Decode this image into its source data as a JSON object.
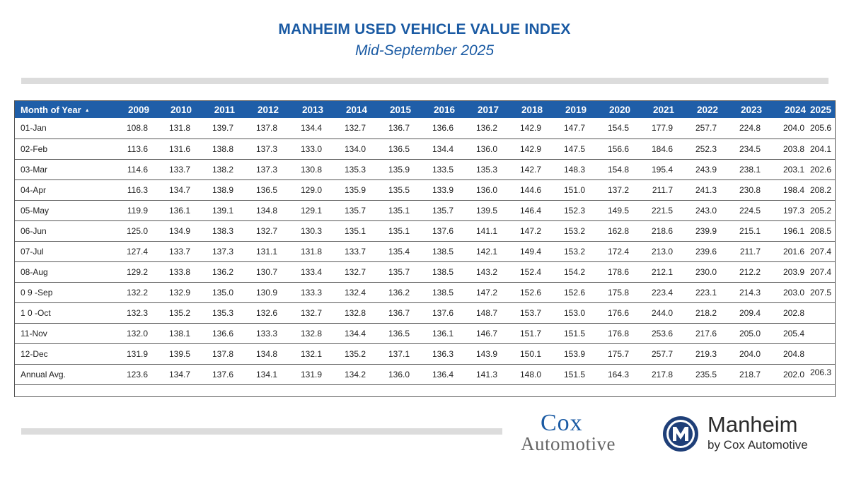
{
  "header": {
    "title": "MANHEIM USED VEHICLE VALUE INDEX",
    "subtitle": "Mid-September 2025"
  },
  "logos": {
    "cox_line1": "Cox",
    "cox_line2": "Automotive",
    "manheim_name": "Manheim",
    "manheim_sub": "by Cox Automotive"
  },
  "colors": {
    "title": "#1a5aa3",
    "header_bg": "#1f5ea8",
    "rule_bar": "#dcdcdc"
  },
  "chart_data": {
    "type": "table",
    "title": "MANHEIM USED VEHICLE VALUE INDEX",
    "subtitle": "Mid-September 2025",
    "first_column_header": "Month of Year",
    "sort_indicator": "▲",
    "columns": [
      "2009",
      "2010",
      "2011",
      "2012",
      "2013",
      "2014",
      "2015",
      "2016",
      "2017",
      "2018",
      "2019",
      "2020",
      "2021",
      "2022",
      "2023",
      "2024",
      "2025"
    ],
    "rows": [
      {
        "label": "01-Jan",
        "values": [
          "108.8",
          "131.8",
          "139.7",
          "137.8",
          "134.4",
          "132.7",
          "136.7",
          "136.6",
          "136.2",
          "142.9",
          "147.7",
          "154.5",
          "177.9",
          "257.7",
          "224.8",
          "204.0",
          "205.6"
        ]
      },
      {
        "label": "02-Feb",
        "values": [
          "113.6",
          "131.6",
          "138.8",
          "137.3",
          "133.0",
          "134.0",
          "136.5",
          "134.4",
          "136.0",
          "142.9",
          "147.5",
          "156.6",
          "184.6",
          "252.3",
          "234.5",
          "203.8",
          "204.1"
        ]
      },
      {
        "label": "03-Mar",
        "values": [
          "114.6",
          "133.7",
          "138.2",
          "137.3",
          "130.8",
          "135.3",
          "135.9",
          "133.5",
          "135.3",
          "142.7",
          "148.3",
          "154.8",
          "195.4",
          "243.9",
          "238.1",
          "203.1",
          "202.6"
        ]
      },
      {
        "label": "04-Apr",
        "values": [
          "116.3",
          "134.7",
          "138.9",
          "136.5",
          "129.0",
          "135.9",
          "135.5",
          "133.9",
          "136.0",
          "144.6",
          "151.0",
          "137.2",
          "211.7",
          "241.3",
          "230.8",
          "198.4",
          "208.2"
        ]
      },
      {
        "label": "05-May",
        "values": [
          "119.9",
          "136.1",
          "139.1",
          "134.8",
          "129.1",
          "135.7",
          "135.1",
          "135.7",
          "139.5",
          "146.4",
          "152.3",
          "149.5",
          "221.5",
          "243.0",
          "224.5",
          "197.3",
          "205.2"
        ]
      },
      {
        "label": "06-Jun",
        "values": [
          "125.0",
          "134.9",
          "138.3",
          "132.7",
          "130.3",
          "135.1",
          "135.1",
          "137.6",
          "141.1",
          "147.2",
          "153.2",
          "162.8",
          "218.6",
          "239.9",
          "215.1",
          "196.1",
          "208.5"
        ]
      },
      {
        "label": "07-Jul",
        "values": [
          "127.4",
          "133.7",
          "137.3",
          "131.1",
          "131.8",
          "133.7",
          "135.4",
          "138.5",
          "142.1",
          "149.4",
          "153.2",
          "172.4",
          "213.0",
          "239.6",
          "211.7",
          "201.6",
          "207.4"
        ]
      },
      {
        "label": "08-Aug",
        "values": [
          "129.2",
          "133.8",
          "136.2",
          "130.7",
          "133.4",
          "132.7",
          "135.7",
          "138.5",
          "143.2",
          "152.4",
          "154.2",
          "178.6",
          "212.1",
          "230.0",
          "212.2",
          "203.9",
          "207.4"
        ]
      },
      {
        "label": "0 9 -Sep",
        "values": [
          "132.2",
          "132.9",
          "135.0",
          "130.9",
          "133.3",
          "132.4",
          "136.2",
          "138.5",
          "147.2",
          "152.6",
          "152.6",
          "175.8",
          "223.4",
          "223.1",
          "214.3",
          "203.0",
          "207.5"
        ]
      },
      {
        "label": "1 0 -Oct",
        "values": [
          "132.3",
          "135.2",
          "135.3",
          "132.6",
          "132.7",
          "132.8",
          "136.7",
          "137.6",
          "148.7",
          "153.7",
          "153.0",
          "176.6",
          "244.0",
          "218.2",
          "209.4",
          "202.8",
          ""
        ]
      },
      {
        "label": "11-Nov",
        "values": [
          "132.0",
          "138.1",
          "136.6",
          "133.3",
          "132.8",
          "134.4",
          "136.5",
          "136.1",
          "146.7",
          "151.7",
          "151.5",
          "176.8",
          "253.6",
          "217.6",
          "205.0",
          "205.4",
          ""
        ]
      },
      {
        "label": "12-Dec",
        "values": [
          "131.9",
          "139.5",
          "137.8",
          "134.8",
          "132.1",
          "135.2",
          "137.1",
          "136.3",
          "143.9",
          "150.1",
          "153.9",
          "175.7",
          "257.7",
          "219.3",
          "204.0",
          "204.8",
          ""
        ]
      },
      {
        "label": "Annual Avg.",
        "values": [
          "123.6",
          "134.7",
          "137.6",
          "134.1",
          "131.9",
          "134.2",
          "136.0",
          "136.4",
          "141.3",
          "148.0",
          "151.5",
          "164.3",
          "217.8",
          "235.5",
          "218.7",
          "202.0",
          "206.3"
        ]
      }
    ]
  }
}
